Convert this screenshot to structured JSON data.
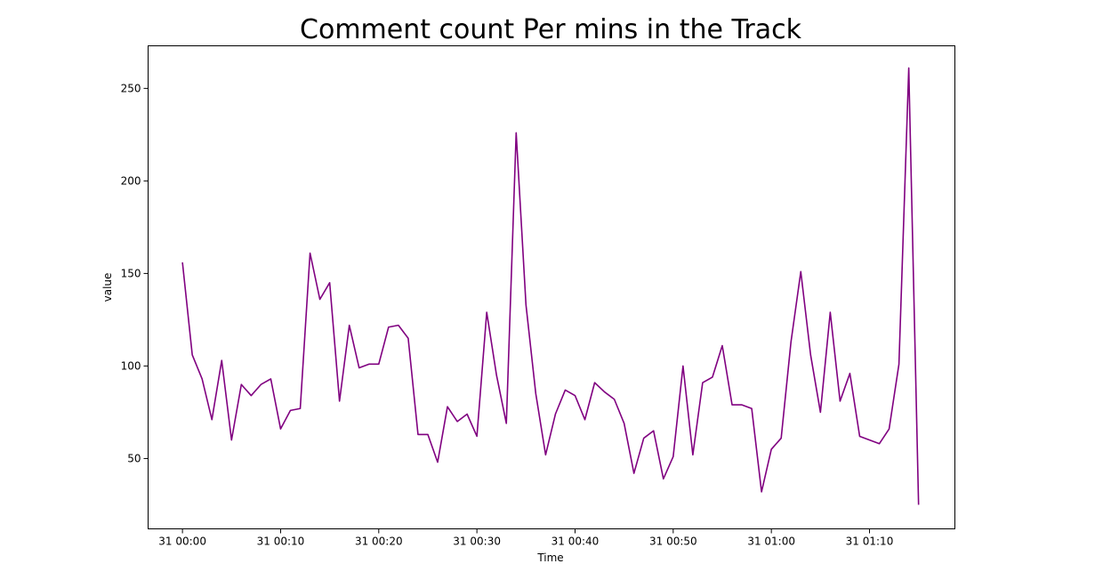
{
  "chart_data": {
    "type": "line",
    "title": "Comment count Per mins in the Track",
    "xlabel": "Time",
    "ylabel": "value",
    "xlim": [
      -3.5,
      78.7
    ],
    "ylim": [
      12,
      273
    ],
    "x_ticks": [
      {
        "value": 0,
        "label": "31 00:00"
      },
      {
        "value": 10,
        "label": "31 00:10"
      },
      {
        "value": 20,
        "label": "31 00:20"
      },
      {
        "value": 30,
        "label": "31 00:30"
      },
      {
        "value": 40,
        "label": "31 00:40"
      },
      {
        "value": 50,
        "label": "31 00:50"
      },
      {
        "value": 60,
        "label": "31 01:00"
      },
      {
        "value": 70,
        "label": "31 01:10"
      }
    ],
    "y_ticks": [
      50,
      100,
      150,
      200,
      250
    ],
    "grid": false,
    "series": [
      {
        "color": "#800080",
        "x": [
          0,
          1,
          2,
          3,
          4,
          5,
          6,
          7,
          8,
          9,
          10,
          11,
          12,
          13,
          14,
          15,
          16,
          17,
          18,
          19,
          20,
          21,
          22,
          23,
          24,
          25,
          26,
          27,
          28,
          29,
          30,
          31,
          32,
          33,
          34,
          35,
          36,
          37,
          38,
          39,
          40,
          41,
          42,
          43,
          44,
          45,
          46,
          47,
          48,
          49,
          50,
          51,
          52,
          53,
          54,
          55,
          56,
          57,
          58,
          59,
          60,
          61,
          62,
          63,
          64,
          65,
          66,
          67,
          68,
          69,
          70,
          71,
          72,
          73,
          74,
          75
        ],
        "values": [
          156,
          106,
          93,
          71,
          103,
          60,
          90,
          84,
          90,
          93,
          66,
          76,
          77,
          161,
          136,
          145,
          81,
          122,
          99,
          101,
          101,
          121,
          122,
          115,
          63,
          63,
          48,
          78,
          70,
          74,
          62,
          129,
          95,
          69,
          226,
          133,
          85,
          52,
          74,
          87,
          84,
          71,
          91,
          86,
          82,
          69,
          42,
          61,
          65,
          39,
          51,
          100,
          52,
          91,
          94,
          111,
          79,
          79,
          77,
          32,
          55,
          61,
          113,
          151,
          106,
          75,
          129,
          81,
          96,
          62,
          60,
          58,
          66,
          101,
          261,
          25
        ]
      }
    ]
  }
}
